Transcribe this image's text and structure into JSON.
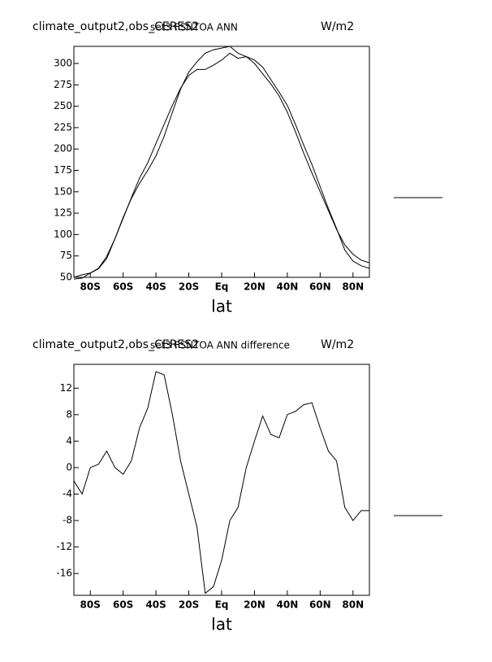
{
  "chart_data": [
    {
      "type": "line",
      "title": "climate_output2,obs_CERES2",
      "subtitle": "set3 FSNTOA ANN",
      "units": "W/m2",
      "xlabel": "lat",
      "x": [
        -90,
        -85,
        -80,
        -75,
        -70,
        -65,
        -60,
        -55,
        -50,
        -45,
        -40,
        -35,
        -30,
        -25,
        -20,
        -15,
        -10,
        -5,
        0,
        5,
        10,
        15,
        20,
        25,
        30,
        35,
        40,
        45,
        50,
        55,
        60,
        65,
        70,
        75,
        80,
        85,
        90
      ],
      "series": [
        {
          "color": "#000000",
          "values": [
            50,
            53,
            55,
            60,
            72,
            95,
            120,
            142,
            160,
            175,
            192,
            215,
            243,
            270,
            290,
            302,
            312,
            316,
            318,
            320,
            312,
            308,
            300,
            288,
            276,
            262,
            243,
            220,
            195,
            172,
            150,
            128,
            106,
            88,
            77,
            70,
            67
          ]
        },
        {
          "color": "#000000",
          "values": [
            48,
            49,
            55,
            60.5,
            74.5,
            95,
            119,
            143,
            166,
            184,
            206.5,
            229,
            251,
            271,
            286,
            293,
            293,
            298,
            304,
            312,
            306,
            308,
            304,
            295.8,
            281,
            266.5,
            251,
            228.5,
            204.5,
            181.8,
            156,
            130.5,
            107,
            82,
            69,
            63.5,
            60.5
          ]
        }
      ],
      "xlim": [
        -90,
        90
      ],
      "ylim": [
        50,
        320
      ],
      "xticks": [
        {
          "value": -80,
          "label": "80S"
        },
        {
          "value": -60,
          "label": "60S"
        },
        {
          "value": -40,
          "label": "40S"
        },
        {
          "value": -20,
          "label": "20S"
        },
        {
          "value": 0,
          "label": "Eq"
        },
        {
          "value": 20,
          "label": "20N"
        },
        {
          "value": 40,
          "label": "40N"
        },
        {
          "value": 60,
          "label": "60N"
        },
        {
          "value": 80,
          "label": "80N"
        }
      ],
      "yticks": [
        50,
        75,
        100,
        125,
        150,
        175,
        200,
        225,
        250,
        275,
        300
      ]
    },
    {
      "type": "line",
      "title": "climate_output2,obs_CERES2",
      "subtitle": "set3 FSNTOA ANN difference",
      "units": "W/m2",
      "xlabel": "lat",
      "x": [
        -90,
        -85,
        -80,
        -75,
        -70,
        -65,
        -60,
        -55,
        -50,
        -45,
        -40,
        -35,
        -30,
        -25,
        -20,
        -15,
        -10,
        -5,
        0,
        5,
        10,
        15,
        20,
        25,
        30,
        35,
        40,
        45,
        50,
        55,
        60,
        65,
        70,
        75,
        80,
        85,
        90
      ],
      "series": [
        {
          "color": "#000000",
          "values": [
            -2,
            -4,
            0,
            0.5,
            2.5,
            0,
            -1,
            1,
            6,
            9,
            14.5,
            14,
            8,
            1,
            -4,
            -9,
            -19,
            -18,
            -14,
            -8,
            -6,
            0,
            4,
            7.8,
            5,
            4.5,
            8,
            8.5,
            9.5,
            9.8,
            6,
            2.5,
            1,
            -6,
            -8,
            -6.5,
            -6.5
          ]
        }
      ],
      "xlim": [
        -90,
        90
      ],
      "ylim": [
        -19.3,
        15.6
      ],
      "xticks": [
        {
          "value": -80,
          "label": "80S"
        },
        {
          "value": -60,
          "label": "60S"
        },
        {
          "value": -40,
          "label": "40S"
        },
        {
          "value": -20,
          "label": "20S"
        },
        {
          "value": 0,
          "label": "Eq"
        },
        {
          "value": 20,
          "label": "20N"
        },
        {
          "value": 40,
          "label": "40N"
        },
        {
          "value": 60,
          "label": "60N"
        },
        {
          "value": 80,
          "label": "80N"
        }
      ],
      "yticks": [
        12,
        8,
        4,
        0,
        -4,
        -8,
        -12,
        -16
      ]
    }
  ]
}
